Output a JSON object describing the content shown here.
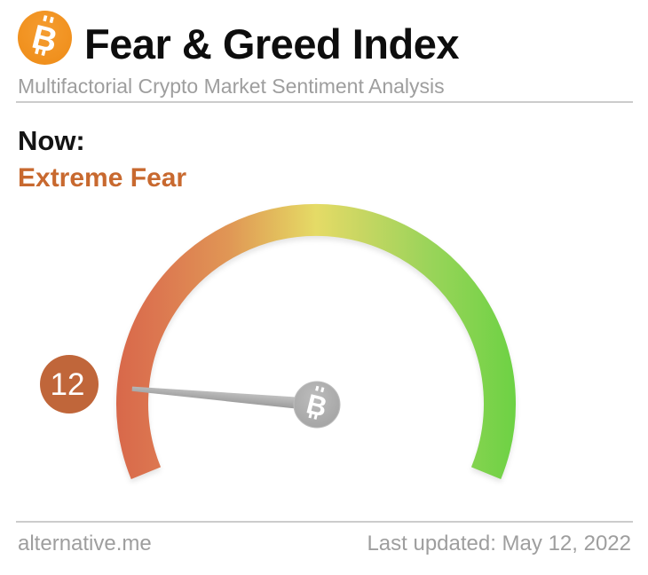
{
  "header": {
    "logo_icon": "bitcoin-icon",
    "title": "Fear & Greed Index",
    "subtitle": "Multifactorial Crypto Market Sentiment Analysis"
  },
  "status": {
    "label": "Now:",
    "value": "Extreme Fear"
  },
  "footer": {
    "site": "alternative.me",
    "last_updated": "Last updated: May 12, 2022"
  },
  "colors": {
    "bitcoin_orange": "#f2921e",
    "title_text": "#0d0d0d",
    "muted_text": "#9e9e9e",
    "divider": "#cccccc",
    "status_value": "#c8692f",
    "badge": "#c0663a",
    "needle": "#a9a9a9",
    "hub": "#adadad"
  },
  "chart_data": {
    "type": "gauge",
    "title": "Fear & Greed Index",
    "subtitle": "Multifactorial Crypto Market Sentiment Analysis",
    "value": 12,
    "min": 0,
    "max": 100,
    "classification": "Extreme Fear",
    "last_updated": "May 12, 2022",
    "sweep_deg": 224,
    "legend": "gradient ring from red (0, Extreme Fear) through yellow (50) to green (100, Extreme Greed)",
    "arc_gradient": [
      {
        "offset": 0.0,
        "color": "#d8684a"
      },
      {
        "offset": 0.1,
        "color": "#dc7650"
      },
      {
        "offset": 0.28,
        "color": "#e09655"
      },
      {
        "offset": 0.42,
        "color": "#e3c25e"
      },
      {
        "offset": 0.5,
        "color": "#e5db66"
      },
      {
        "offset": 0.62,
        "color": "#c6d662"
      },
      {
        "offset": 0.78,
        "color": "#9bd45a"
      },
      {
        "offset": 1.0,
        "color": "#6dd244"
      }
    ]
  }
}
